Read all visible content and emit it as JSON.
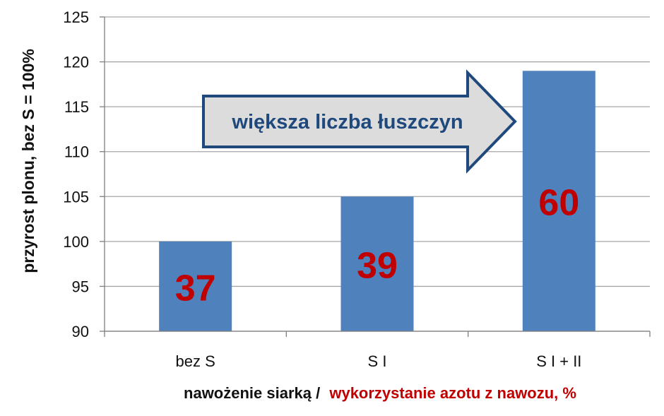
{
  "chart_data": {
    "type": "bar",
    "categories": [
      "bez S",
      "S I",
      "S I + II"
    ],
    "values": [
      100,
      105,
      119
    ],
    "data_labels": [
      "37",
      "39",
      "60"
    ],
    "ylabel": "przyrost plonu, bez S = 100%",
    "xlabel": {
      "part1": "nawożenie siarką /",
      "part2": "wykorzystanie azotu z nawozu, %"
    },
    "ylim": [
      90,
      125
    ],
    "yticks": [
      90,
      95,
      100,
      105,
      110,
      115,
      120,
      125
    ],
    "grid": true,
    "annotation": "większa liczba łuszczyn",
    "colors": {
      "bar": "#4f81bd",
      "data_label": "#c00000",
      "xlabel_part2": "#c00000",
      "annotation_text": "#1f497d",
      "arrow_fill": "#dcdcdc",
      "arrow_stroke": "#1f497d",
      "grid": "#a6a6a6"
    }
  }
}
